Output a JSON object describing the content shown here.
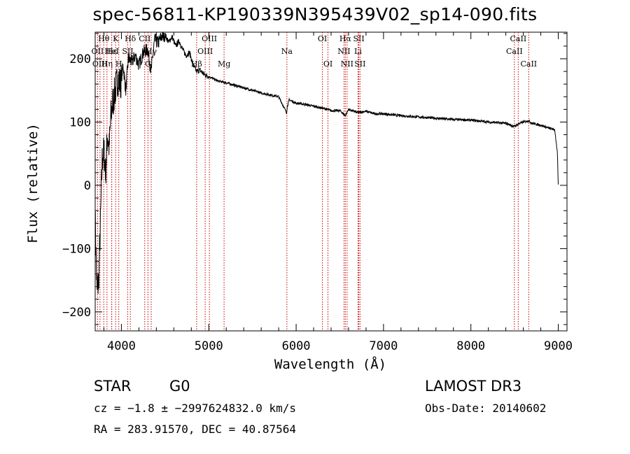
{
  "header": {
    "title": "spec-56811-KP190339N395439V02_sp14-090.fits"
  },
  "chart_data": {
    "type": "line",
    "title": "spec-56811-KP190339N395439V02_sp14-090.fits",
    "xlabel": "Wavelength (Å)",
    "ylabel": "Flux (relative)",
    "xlim": [
      3700,
      9100
    ],
    "ylim": [
      -230,
      242
    ],
    "xticks": [
      4000,
      5000,
      6000,
      7000,
      8000,
      9000
    ],
    "yticks": [
      -200,
      -100,
      0,
      100,
      200
    ],
    "series": [
      {
        "name": "flux",
        "x": [
          3700,
          3720,
          3740,
          3760,
          3780,
          3800,
          3820,
          3840,
          3860,
          3880,
          3900,
          3930,
          3960,
          3990,
          4020,
          4050,
          4080,
          4120,
          4160,
          4200,
          4250,
          4300,
          4340,
          4380,
          4420,
          4460,
          4500,
          4540,
          4580,
          4620,
          4660,
          4700,
          4740,
          4780,
          4820,
          4861,
          4900,
          4950,
          5000,
          5100,
          5200,
          5300,
          5400,
          5500,
          5600,
          5700,
          5800,
          5890,
          5900,
          5920,
          6000,
          6100,
          6200,
          6300,
          6400,
          6500,
          6563,
          6600,
          6700,
          6800,
          6900,
          7000,
          7200,
          7400,
          7600,
          7800,
          8000,
          8200,
          8400,
          8498,
          8542,
          8600,
          8662,
          8700,
          8800,
          8900,
          8960,
          8990,
          9000
        ],
        "values": [
          -50,
          -170,
          -150,
          -60,
          40,
          55,
          20,
          80,
          60,
          110,
          130,
          150,
          170,
          160,
          190,
          150,
          200,
          195,
          205,
          190,
          210,
          215,
          180,
          230,
          225,
          235,
          238,
          226,
          235,
          220,
          228,
          215,
          205,
          210,
          190,
          180,
          182,
          175,
          172,
          165,
          162,
          158,
          154,
          150,
          146,
          143,
          140,
          115,
          125,
          135,
          130,
          128,
          125,
          122,
          118,
          118,
          110,
          120,
          115,
          117,
          113,
          113,
          110,
          108,
          106,
          104,
          103,
          100,
          98,
          93,
          97,
          100,
          102,
          98,
          95,
          90,
          88,
          50,
          0
        ]
      }
    ],
    "lines": [
      {
        "name": "Hθ",
        "x": 3798,
        "row": 0
      },
      {
        "name": "OII",
        "x": 3727,
        "row": 1
      },
      {
        "name": "OIII",
        "x": 3755,
        "row": 2
      },
      {
        "name": "Hη",
        "x": 3835,
        "row": 2
      },
      {
        "name": "K",
        "x": 3934,
        "row": 0
      },
      {
        "name": "Hε",
        "x": 3889,
        "row": 1
      },
      {
        "name": "HeI",
        "x": 3889,
        "row": 1
      },
      {
        "name": "H",
        "x": 3970,
        "row": 2
      },
      {
        "name": "SII",
        "x": 4072,
        "row": 1
      },
      {
        "name": "Hδ",
        "x": 4102,
        "row": 0
      },
      {
        "name": "G",
        "x": 4304,
        "row": 2
      },
      {
        "name": "CII",
        "x": 4267,
        "row": 0
      },
      {
        "name": "Hγ",
        "x": 4341,
        "row": 1
      },
      {
        "name": "Hβ",
        "x": 4861,
        "row": 2
      },
      {
        "name": "OIII",
        "x": 4959,
        "row": 1
      },
      {
        "name": "OIII",
        "x": 5007,
        "row": 0
      },
      {
        "name": "Mg",
        "x": 5175,
        "row": 2
      },
      {
        "name": "Na",
        "x": 5894,
        "row": 1
      },
      {
        "name": "OI",
        "x": 6300,
        "row": 0
      },
      {
        "name": "OI",
        "x": 6364,
        "row": 2
      },
      {
        "name": "Hα",
        "x": 6563,
        "row": 0
      },
      {
        "name": "NII",
        "x": 6548,
        "row": 1
      },
      {
        "name": "NII",
        "x": 6583,
        "row": 2
      },
      {
        "name": "SII",
        "x": 6717,
        "row": 0
      },
      {
        "name": "Li",
        "x": 6708,
        "row": 1
      },
      {
        "name": "SII",
        "x": 6731,
        "row": 2
      },
      {
        "name": "CaII",
        "x": 8542,
        "row": 0
      },
      {
        "name": "CaII",
        "x": 8498,
        "row": 1
      },
      {
        "name": "CaII",
        "x": 8662,
        "row": 2
      }
    ]
  },
  "info": {
    "object_class": "STAR",
    "subclass": "G0",
    "cz": "cz = −1.8 ± −2997624832.0 km/s",
    "coords": "RA = 283.91570, DEC =  40.87564",
    "survey": "LAMOST DR3",
    "obs_date": "Obs-Date: 20140602"
  }
}
